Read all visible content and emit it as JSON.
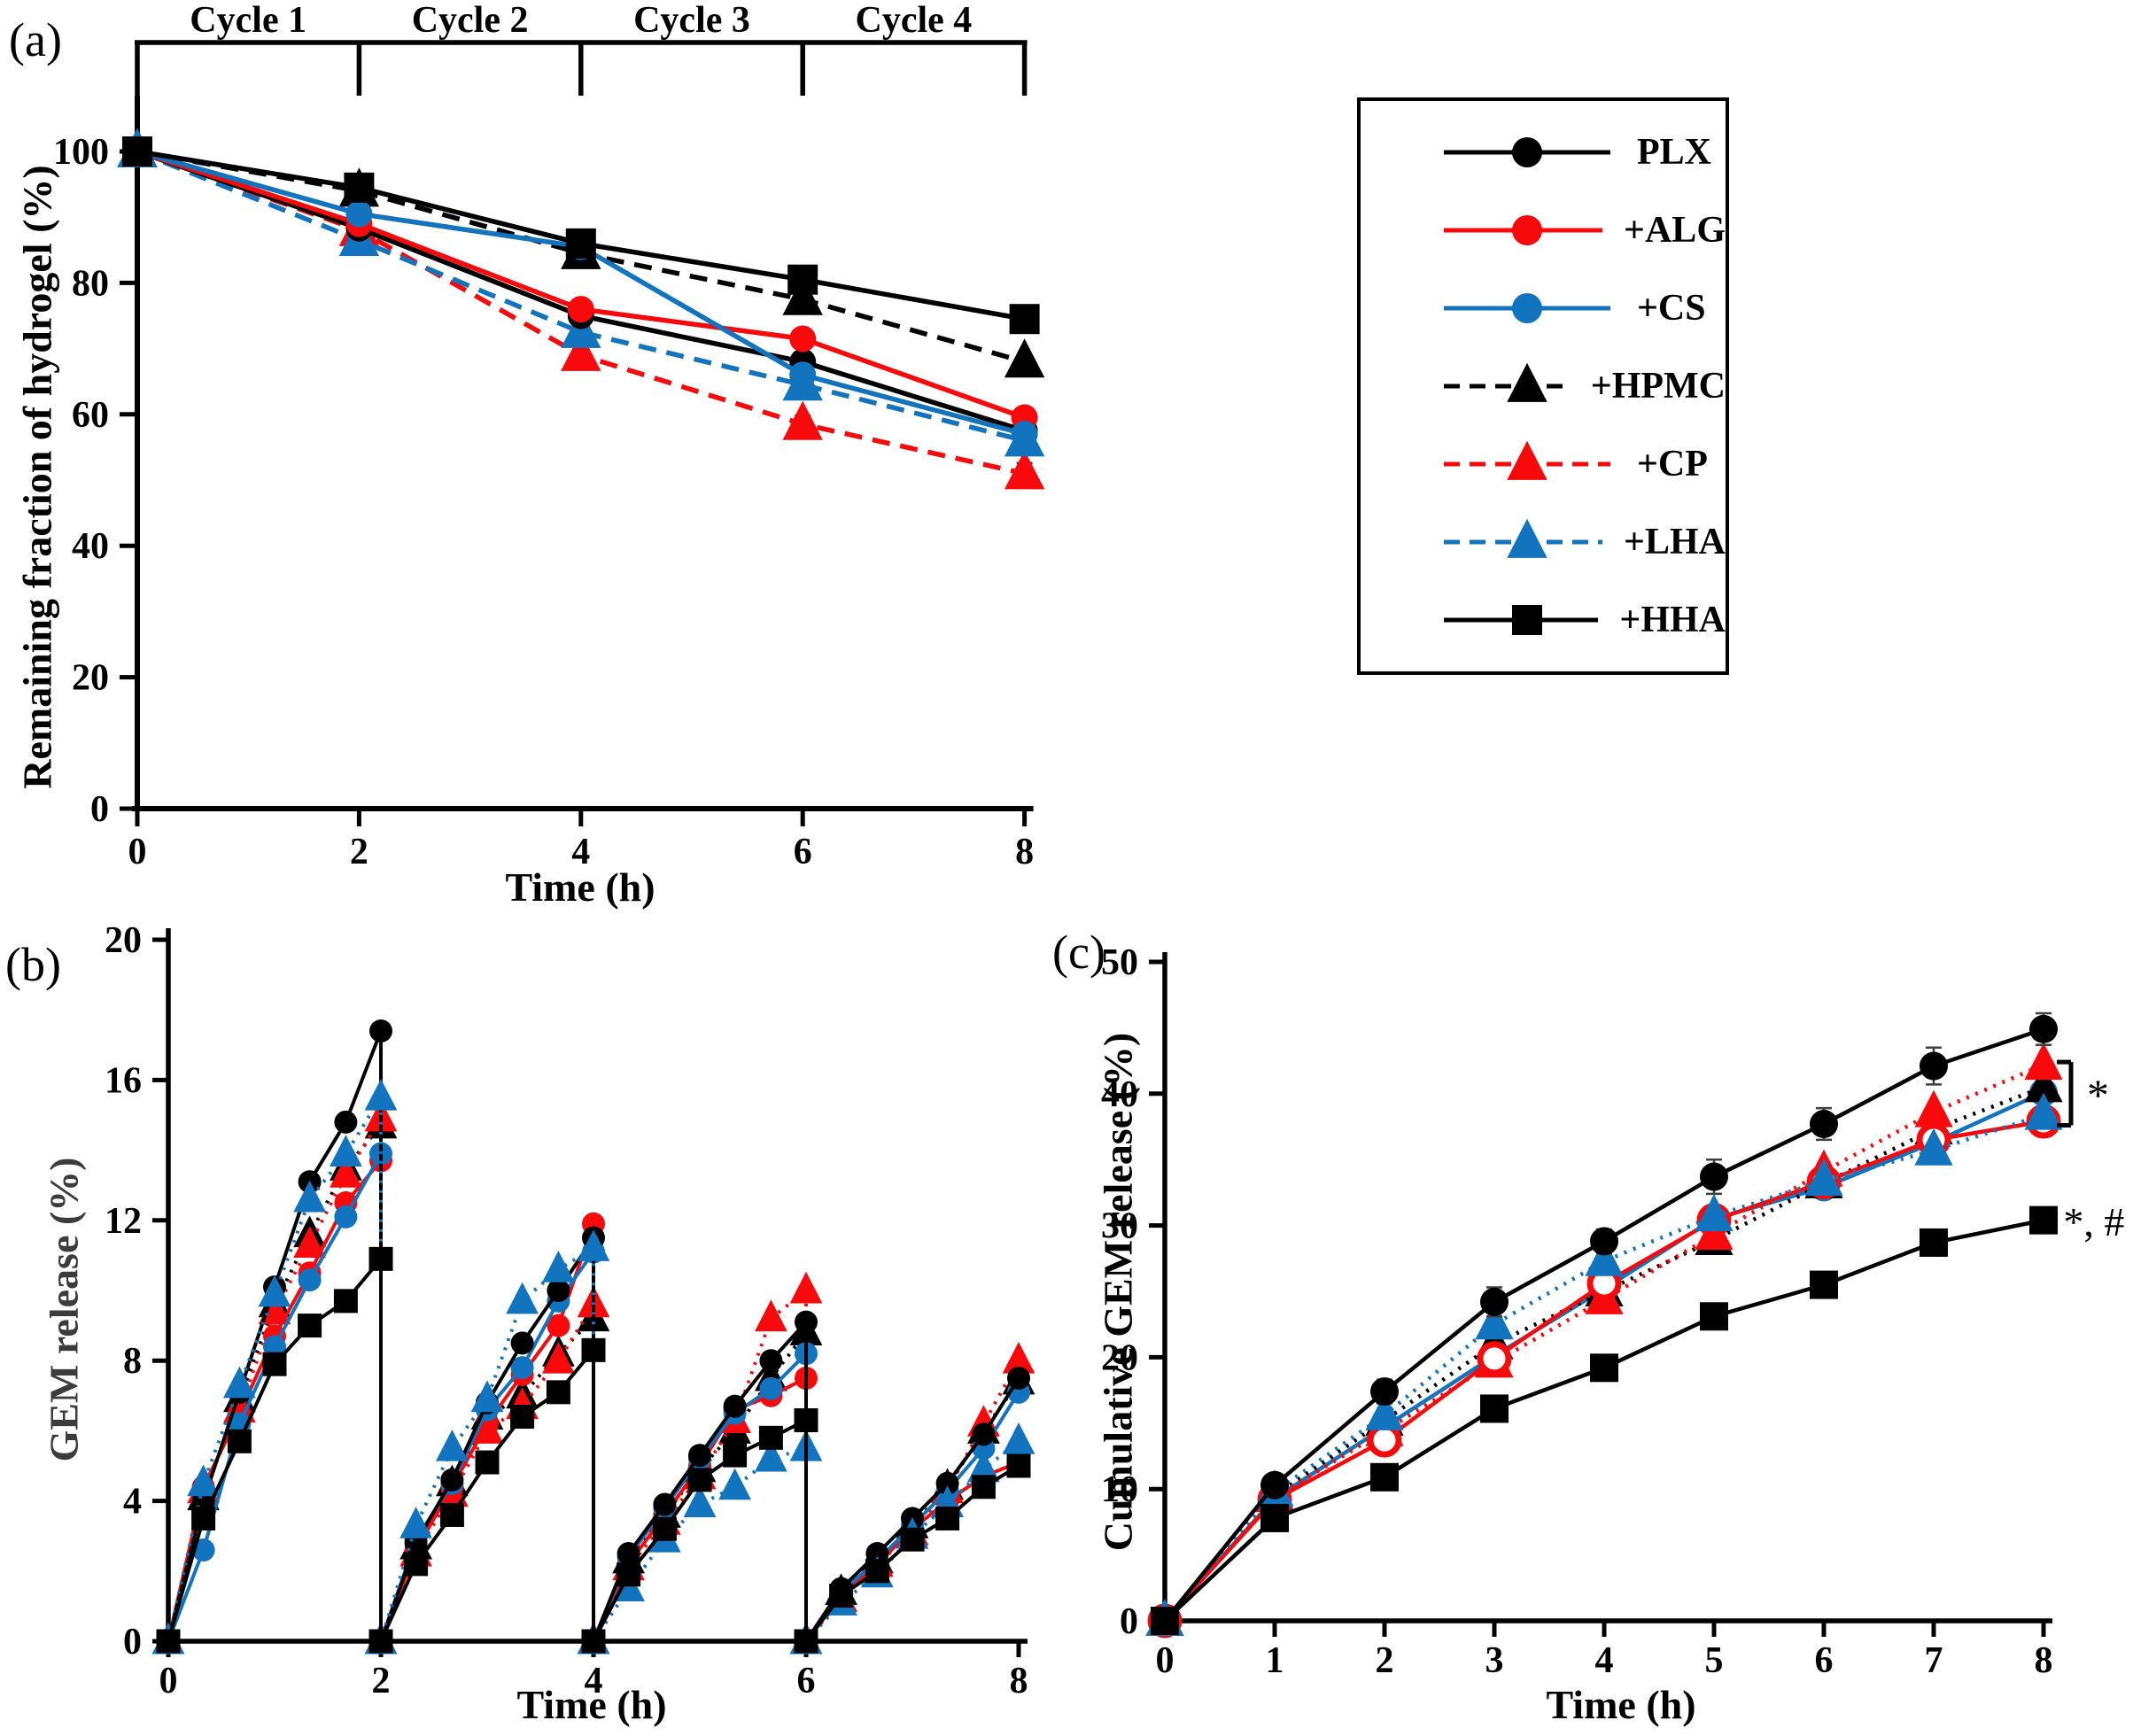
{
  "figure": {
    "panel_labels": {
      "a": "(a)",
      "b": "(b)",
      "c": "(c)"
    },
    "colors": {
      "black": "#000000",
      "red": "#F8090C",
      "blue": "#1273BE"
    },
    "legend": {
      "entries": [
        {
          "label": "PLX",
          "marker": "circle",
          "color": "#000000",
          "line": "solid"
        },
        {
          "label": "+ALG",
          "marker": "circle",
          "color": "#F8090C",
          "line": "solid"
        },
        {
          "label": "+CS",
          "marker": "circle",
          "color": "#1273BE",
          "line": "solid"
        },
        {
          "label": "+HPMC",
          "marker": "triangle",
          "color": "#000000",
          "line": "dashed"
        },
        {
          "label": "+CP",
          "marker": "triangle",
          "color": "#F8090C",
          "line": "dashed"
        },
        {
          "label": "+LHA",
          "marker": "triangle",
          "color": "#1273BE",
          "line": "dashed"
        },
        {
          "label": "+HHA",
          "marker": "square",
          "color": "#000000",
          "line": "solid"
        }
      ]
    }
  },
  "chart_data": [
    {
      "panel": "a",
      "type": "line",
      "xlabel": "Time (h)",
      "ylabel": "Remaining fraction of hydrogel (%)",
      "xlim": [
        0,
        8
      ],
      "ylim": [
        0,
        100
      ],
      "xticks": [
        0,
        2,
        4,
        6,
        8
      ],
      "yticks": [
        0,
        20,
        40,
        60,
        80,
        100
      ],
      "grid": false,
      "cycle_labels": [
        "Cycle 1",
        "Cycle 2",
        "Cycle 3",
        "Cycle 4"
      ],
      "cycle_boundaries": [
        0,
        2,
        4,
        6,
        8
      ],
      "x": [
        0,
        2,
        4,
        6,
        8
      ],
      "series": [
        {
          "name": "+HPMC",
          "color": "#000000",
          "marker": "triangle",
          "line": "dashed",
          "open": false,
          "y": [
            100,
            94,
            84.5,
            77.5,
            68
          ]
        },
        {
          "name": "+CP",
          "color": "#F8090C",
          "marker": "triangle",
          "line": "dashed",
          "open": false,
          "y": [
            100,
            88,
            69,
            58.5,
            51
          ],
          "err": [
            0,
            1,
            1.5,
            1.3,
            1.6
          ]
        },
        {
          "name": "+LHA",
          "color": "#1273BE",
          "marker": "triangle",
          "line": "dashed",
          "open": false,
          "y": [
            100,
            86.5,
            72.5,
            64.5,
            56
          ],
          "err": [
            0,
            0,
            0,
            0,
            1
          ]
        },
        {
          "name": "PLX",
          "color": "#000000",
          "marker": "circle",
          "line": "solid",
          "open": false,
          "y": [
            100,
            88.3,
            75,
            68,
            57.5
          ]
        },
        {
          "name": "+ALG",
          "color": "#F8090C",
          "marker": "circle",
          "line": "solid",
          "open": false,
          "y": [
            100,
            89,
            76,
            71.5,
            59.5
          ]
        },
        {
          "name": "+CS",
          "color": "#1273BE",
          "marker": "circle",
          "line": "solid",
          "open": false,
          "y": [
            100,
            90.5,
            85.5,
            66,
            57
          ],
          "err": [
            0,
            0,
            0,
            0,
            1.2
          ]
        },
        {
          "name": "+HHA",
          "color": "#000000",
          "marker": "square",
          "line": "solid",
          "open": false,
          "y": [
            100,
            94.5,
            86,
            80.5,
            74.5
          ]
        }
      ]
    },
    {
      "panel": "b",
      "type": "line",
      "xlabel": "Time (h)",
      "ylabel": "GEM release (%)",
      "xlim": [
        0,
        8
      ],
      "ylim": [
        0,
        20
      ],
      "xticks": [
        0,
        2,
        4,
        6,
        8
      ],
      "yticks": [
        0,
        4,
        8,
        12,
        16,
        20
      ],
      "grid": false,
      "x": [
        0,
        0.33,
        0.67,
        1,
        1.33,
        1.67,
        2,
        2,
        2.33,
        2.67,
        3,
        3.33,
        3.67,
        4,
        4,
        4.33,
        4.67,
        5,
        5.33,
        5.67,
        6,
        6,
        6.33,
        6.67,
        7,
        7.33,
        7.67,
        8
      ],
      "series": [
        {
          "name": "+HPMC",
          "color": "#000000",
          "marker": "triangle",
          "line": "dotted",
          "open": false,
          "y": [
            0,
            4.1,
            6.9,
            9.6,
            11.6,
            13.5,
            14.7,
            0,
            2.7,
            4.5,
            6.4,
            7.0,
            8.2,
            9.2,
            0,
            2.3,
            3.6,
            4.9,
            6.0,
            7.5,
            8.8,
            0,
            1.4,
            2.3,
            3.3,
            4.4,
            6.0,
            7.4
          ]
        },
        {
          "name": "+CP",
          "color": "#F8090C",
          "marker": "triangle",
          "line": "dotted",
          "open": false,
          "y": [
            0,
            4.3,
            6.6,
            9.4,
            11.3,
            13.3,
            14.9,
            0,
            2.5,
            4.2,
            6.0,
            6.7,
            8.0,
            9.6,
            0,
            2.1,
            3.4,
            4.7,
            6.3,
            9.2,
            10.0,
            0,
            1.2,
            2.2,
            3.1,
            4.3,
            6.2,
            8.0
          ]
        },
        {
          "name": "+ALG",
          "color": "#F8090C",
          "marker": "circle",
          "line": "solid",
          "open": false,
          "y": [
            0,
            4.4,
            6.5,
            8.7,
            10.5,
            12.5,
            13.7,
            0,
            2.6,
            4.4,
            6.2,
            7.6,
            9.0,
            11.9,
            0,
            2.2,
            3.6,
            5.0,
            6.6,
            7.0,
            7.5,
            0,
            1.3,
            2.2,
            3.2,
            4.0,
            4.7,
            5.1
          ]
        },
        {
          "name": "+CS",
          "color": "#1273BE",
          "marker": "circle",
          "line": "solid",
          "open": false,
          "y": [
            0,
            2.6,
            6.2,
            8.4,
            10.3,
            12.1,
            13.9,
            0,
            2.9,
            4.5,
            6.6,
            7.8,
            9.7,
            11.1,
            0,
            2.4,
            3.8,
            5.2,
            6.5,
            7.2,
            8.2,
            0,
            1.4,
            2.3,
            3.3,
            4.3,
            5.5,
            7.1
          ]
        },
        {
          "name": "PLX",
          "color": "#000000",
          "marker": "circle",
          "line": "solid",
          "open": false,
          "y": [
            0,
            4.0,
            7.1,
            10.1,
            13.1,
            14.8,
            17.4,
            0,
            2.8,
            4.6,
            6.8,
            8.5,
            10.0,
            11.5,
            0,
            2.5,
            3.9,
            5.3,
            6.7,
            8.0,
            9.1,
            0,
            1.5,
            2.5,
            3.5,
            4.5,
            5.9,
            7.5
          ]
        },
        {
          "name": "+LHA",
          "color": "#1273BE",
          "marker": "triangle",
          "line": "dotted",
          "open": false,
          "y": [
            0,
            4.5,
            7.3,
            9.9,
            12.6,
            13.9,
            15.5,
            0,
            3.3,
            5.5,
            6.9,
            9.7,
            10.6,
            11.2,
            0,
            1.5,
            2.9,
            3.9,
            4.4,
            5.2,
            5.5,
            0,
            1.1,
            1.9,
            3.0,
            3.9,
            4.9,
            5.7
          ]
        },
        {
          "name": "+HHA",
          "color": "#000000",
          "marker": "square",
          "line": "solid",
          "open": false,
          "y": [
            0,
            3.5,
            5.7,
            7.9,
            9.0,
            9.7,
            10.9,
            0,
            2.2,
            3.6,
            5.1,
            6.4,
            7.1,
            8.3,
            0,
            1.9,
            3.2,
            4.6,
            5.3,
            5.8,
            6.3,
            0,
            1.3,
            2.0,
            2.9,
            3.5,
            4.4,
            5.0
          ]
        }
      ]
    },
    {
      "panel": "c",
      "type": "line",
      "xlabel": "Time (h)",
      "ylabel": "Cumulative GEM release (%)",
      "xlim": [
        0,
        8
      ],
      "ylim": [
        0,
        50
      ],
      "xticks": [
        0,
        1,
        2,
        3,
        4,
        5,
        6,
        7,
        8
      ],
      "yticks": [
        0,
        10,
        20,
        30,
        40,
        50
      ],
      "grid": false,
      "x": [
        0,
        1,
        2,
        3,
        4,
        5,
        6,
        7,
        8
      ],
      "series": [
        {
          "name": "+CS",
          "color": "#1273BE",
          "marker": "circle",
          "line": "solid",
          "open": false,
          "y": [
            0,
            9.3,
            14.7,
            20.1,
            25.2,
            30.5,
            32.9,
            36.3,
            40.1
          ]
        },
        {
          "name": "+HPMC",
          "color": "#000000",
          "marker": "triangle",
          "line": "dotted",
          "open": false,
          "y": [
            0,
            9.5,
            15.2,
            21.0,
            25.0,
            28.9,
            33.2,
            37.3,
            40.5
          ]
        },
        {
          "name": "+CP",
          "color": "#F8090C",
          "marker": "triangle",
          "line": "dotted",
          "open": false,
          "y": [
            0,
            9.4,
            14.4,
            19.6,
            24.4,
            29.3,
            34.1,
            38.6,
            42.2
          ]
        },
        {
          "name": "+ALG",
          "color": "#F8090C",
          "marker": "circle",
          "line": "solid",
          "open": true,
          "y": [
            0,
            9.2,
            13.7,
            19.9,
            25.6,
            30.4,
            33.3,
            36.5,
            37.9
          ]
        },
        {
          "name": "+LHA",
          "color": "#1273BE",
          "marker": "triangle",
          "line": "dotted",
          "open": false,
          "y": [
            0,
            9.8,
            15.6,
            22.5,
            27.3,
            30.7,
            33.4,
            35.7,
            38.4
          ]
        },
        {
          "name": "PLX",
          "color": "#000000",
          "marker": "circle",
          "line": "solid",
          "open": false,
          "y": [
            0,
            10.3,
            17.4,
            24.2,
            28.8,
            33.7,
            37.7,
            42.1,
            44.9
          ],
          "err": [
            0,
            0,
            0.9,
            1.1,
            0.9,
            1.3,
            1.2,
            1.4,
            1.2
          ]
        },
        {
          "name": "+HHA",
          "color": "#000000",
          "marker": "square",
          "line": "solid",
          "open": false,
          "y": [
            0,
            7.8,
            10.9,
            16.1,
            19.2,
            23.1,
            25.5,
            28.7,
            30.4
          ],
          "err": [
            0,
            0,
            0,
            0,
            0,
            0,
            0,
            0,
            0.9
          ]
        }
      ],
      "annotations": {
        "bracket": {
          "x": 8.25,
          "y_top": 42.4,
          "y_bottom": 37.6,
          "label": "*"
        },
        "note": {
          "x": 8.18,
          "y": 30.3,
          "label": "*, #"
        }
      }
    }
  ]
}
